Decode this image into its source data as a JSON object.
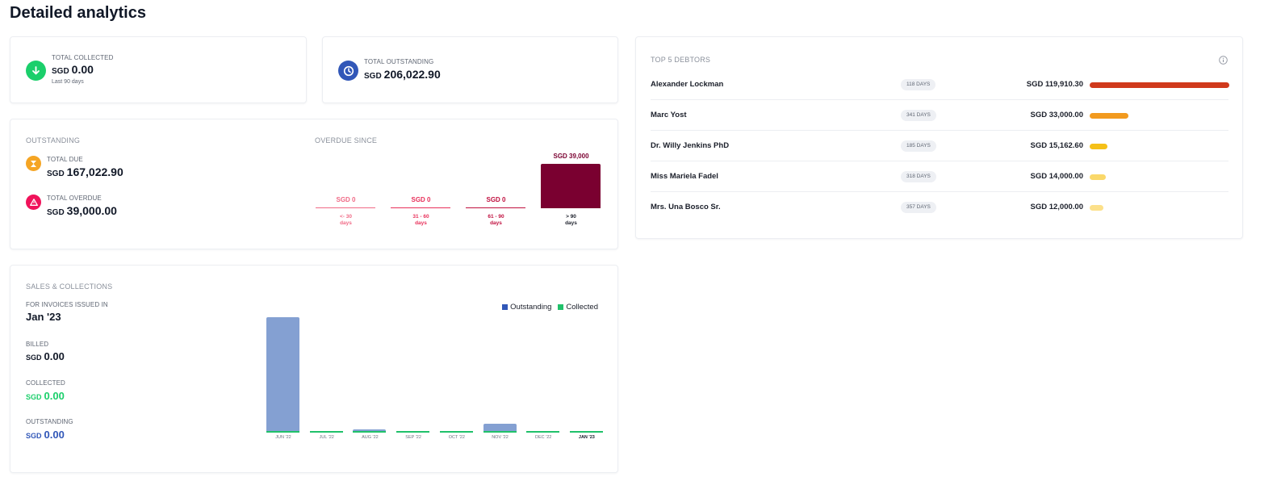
{
  "page": {
    "title": "Detailed analytics"
  },
  "colors": {
    "collected_green": "#1bcf6b",
    "outstanding_blue": "#3157b8",
    "due_orange": "#f5a524",
    "overdue_pink": "#f0125a",
    "overdue_dark": "#7a0030",
    "bar_blue": "#84a0d2",
    "bar_green": "#20c16a"
  },
  "kpi": {
    "collected": {
      "label": "TOTAL COLLECTED",
      "currency": "SGD",
      "amount": "0.00",
      "note": "Last 90 days",
      "icon": "arrow-down-icon"
    },
    "outstanding": {
      "label": "TOTAL OUTSTANDING",
      "currency": "SGD",
      "amount": "206,022.90",
      "icon": "clock-icon"
    }
  },
  "outstanding_card": {
    "title": "OUTSTANDING",
    "total_due": {
      "label": "TOTAL DUE",
      "currency": "SGD",
      "amount": "167,022.90",
      "icon": "hourglass-icon"
    },
    "total_overdue": {
      "label": "TOTAL OVERDUE",
      "currency": "SGD",
      "amount": "39,000.00",
      "icon": "warning-icon"
    }
  },
  "overdue_since": {
    "title": "OVERDUE SINCE",
    "buckets": [
      {
        "amount": "SGD 0",
        "range": "<- 30",
        "unit": "days",
        "value": 0,
        "color": "#f06a86"
      },
      {
        "amount": "SGD 0",
        "range": "31 - 60",
        "unit": "days",
        "value": 0,
        "color": "#e8305a"
      },
      {
        "amount": "SGD 0",
        "range": "61 - 90",
        "unit": "days",
        "value": 0,
        "color": "#c0103f"
      },
      {
        "amount": "SGD 39,000",
        "range": "> 90",
        "unit": "days",
        "value": 39000,
        "color": "#7a0030"
      }
    ]
  },
  "debtors": {
    "title": "TOP 5 DEBTORS",
    "rows": [
      {
        "name": "Alexander Lockman",
        "days": "118 DAYS",
        "amount": "SGD 119,910.30",
        "value": 119910.3,
        "color": "#d0391c"
      },
      {
        "name": "Marc Yost",
        "days": "341 DAYS",
        "amount": "SGD 33,000.00",
        "value": 33000,
        "color": "#f29a1f"
      },
      {
        "name": "Dr. Willy Jenkins PhD",
        "days": "185 DAYS",
        "amount": "SGD 15,162.60",
        "value": 15162.6,
        "color": "#f5c018"
      },
      {
        "name": "Miss Mariela Fadel",
        "days": "318 DAYS",
        "amount": "SGD 14,000.00",
        "value": 14000,
        "color": "#fad86a"
      },
      {
        "name": "Mrs. Una Bosco Sr.",
        "days": "357 DAYS",
        "amount": "SGD 12,000.00",
        "value": 12000,
        "color": "#fce08a"
      }
    ]
  },
  "sales": {
    "title": "SALES & COLLECTIONS",
    "issued_label": "FOR INVOICES ISSUED IN",
    "issued_value": "Jan '23",
    "billed": {
      "label": "BILLED",
      "currency": "SGD",
      "amount": "0.00"
    },
    "collected": {
      "label": "COLLECTED",
      "currency": "SGD",
      "amount": "0.00"
    },
    "outstanding": {
      "label": "OUTSTANDING",
      "currency": "SGD",
      "amount": "0.00"
    },
    "legend": {
      "outstanding": "Outstanding",
      "collected": "Collected"
    }
  },
  "chart_data": {
    "type": "bar",
    "categories": [
      "JUN '22",
      "JUL '22",
      "AUG '22",
      "SEP '22",
      "OCT '22",
      "NOV '22",
      "DEC '22",
      "JAN '23"
    ],
    "series": [
      {
        "name": "Outstanding",
        "values": [
          142,
          0,
          3,
          0,
          1,
          10,
          0,
          0
        ]
      },
      {
        "name": "Collected",
        "values": [
          0,
          0,
          0,
          0,
          0,
          0,
          0,
          0
        ]
      }
    ],
    "selected": "JAN '23"
  }
}
